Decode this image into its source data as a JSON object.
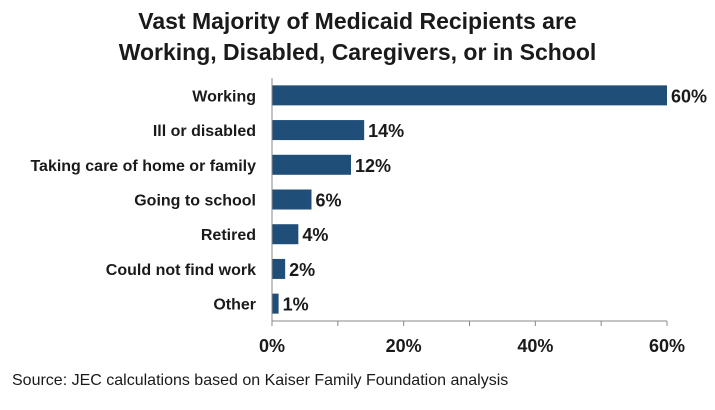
{
  "chart_data": {
    "type": "bar",
    "orientation": "horizontal",
    "title_lines": [
      "Vast Majority of Medicaid Recipients are",
      "Working, Disabled, Caregivers, or in School"
    ],
    "categories": [
      "Working",
      "Ill or disabled",
      "Taking care of home or family",
      "Going to school",
      "Retired",
      "Could not find work",
      "Other"
    ],
    "values": [
      60,
      14,
      12,
      6,
      4,
      2,
      1
    ],
    "data_labels": [
      "60%",
      "14%",
      "12%",
      "6%",
      "4%",
      "2%",
      "1%"
    ],
    "xlim": [
      0,
      60
    ],
    "x_ticks": [
      0,
      20,
      40,
      60
    ],
    "x_tick_labels": [
      "0%",
      "20%",
      "40%",
      "60%"
    ],
    "bar_color": "#1f4e79",
    "grid": false
  },
  "source": "Source: JEC calculations based on Kaiser Family Foundation analysis"
}
